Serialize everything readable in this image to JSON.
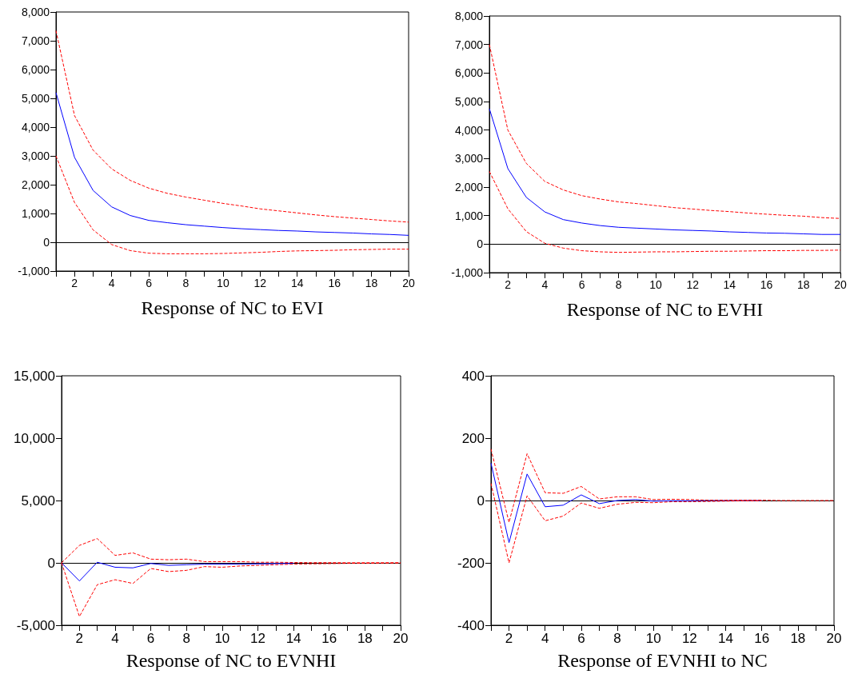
{
  "chart_data": [
    {
      "type": "line",
      "xlabel": "Response of NC to EVI",
      "x": [
        1,
        2,
        3,
        4,
        5,
        6,
        7,
        8,
        9,
        10,
        11,
        12,
        13,
        14,
        15,
        16,
        17,
        18,
        19,
        20
      ],
      "xlim": [
        1,
        20
      ],
      "xticks": [
        {
          "value": 1,
          "label": null
        },
        2,
        {
          "value": 3,
          "label": null
        },
        4,
        {
          "value": 5,
          "label": null
        },
        6,
        {
          "value": 7,
          "label": null
        },
        8,
        {
          "value": 9,
          "label": null
        },
        10,
        {
          "value": 11,
          "label": null
        },
        12,
        {
          "value": 13,
          "label": null
        },
        14,
        {
          "value": 15,
          "label": null
        },
        16,
        {
          "value": 17,
          "label": null
        },
        18,
        {
          "value": 19,
          "label": null
        },
        20
      ],
      "ylim": [
        -1000,
        8000
      ],
      "yticks": [
        {
          "value": -1000,
          "label": "-1,000"
        },
        0,
        {
          "value": 1000,
          "label": "1,000"
        },
        {
          "value": 2000,
          "label": "2,000"
        },
        {
          "value": 3000,
          "label": "3,000"
        },
        {
          "value": 4000,
          "label": "4,000"
        },
        {
          "value": 5000,
          "label": "5,000"
        },
        {
          "value": 6000,
          "label": "6,000"
        },
        {
          "value": 7000,
          "label": "7,000"
        },
        {
          "value": 8000,
          "label": "8,000"
        }
      ],
      "grid": false,
      "marker": "none",
      "ref_lines": [
        {
          "axis": "y",
          "value": 0,
          "color": "#000000"
        }
      ],
      "series": [
        {
          "color": "#0000ff",
          "line_style": "solid",
          "values": [
            5200,
            2950,
            1800,
            1230,
            930,
            760,
            680,
            610,
            560,
            510,
            470,
            440,
            410,
            390,
            360,
            340,
            320,
            290,
            270,
            240
          ]
        },
        {
          "color": "#ff0000",
          "line_style": "dashed",
          "values": [
            7350,
            4400,
            3200,
            2550,
            2150,
            1880,
            1700,
            1570,
            1460,
            1350,
            1260,
            1160,
            1090,
            1020,
            950,
            890,
            840,
            790,
            740,
            700
          ]
        },
        {
          "color": "#ff0000",
          "line_style": "dashed",
          "values": [
            3000,
            1380,
            430,
            -80,
            -290,
            -380,
            -400,
            -400,
            -400,
            -390,
            -370,
            -350,
            -320,
            -300,
            -290,
            -280,
            -260,
            -250,
            -240,
            -240
          ]
        }
      ]
    },
    {
      "type": "line",
      "xlabel": "Response of NC to EVHI",
      "x": [
        1,
        2,
        3,
        4,
        5,
        6,
        7,
        8,
        9,
        10,
        11,
        12,
        13,
        14,
        15,
        16,
        17,
        18,
        19,
        20
      ],
      "xlim": [
        1,
        20
      ],
      "xticks": [
        {
          "value": 1,
          "label": null
        },
        2,
        {
          "value": 3,
          "label": null
        },
        4,
        {
          "value": 5,
          "label": null
        },
        6,
        {
          "value": 7,
          "label": null
        },
        8,
        {
          "value": 9,
          "label": null
        },
        10,
        {
          "value": 11,
          "label": null
        },
        12,
        {
          "value": 13,
          "label": null
        },
        14,
        {
          "value": 15,
          "label": null
        },
        16,
        {
          "value": 17,
          "label": null
        },
        18,
        {
          "value": 19,
          "label": null
        },
        20
      ],
      "ylim": [
        -1000,
        8000
      ],
      "yticks": [
        {
          "value": -1000,
          "label": "-1,000"
        },
        0,
        {
          "value": 1000,
          "label": "1,000"
        },
        {
          "value": 2000,
          "label": "2,000"
        },
        {
          "value": 3000,
          "label": "3,000"
        },
        {
          "value": 4000,
          "label": "4,000"
        },
        {
          "value": 5000,
          "label": "5,000"
        },
        {
          "value": 6000,
          "label": "6,000"
        },
        {
          "value": 7000,
          "label": "7,000"
        },
        {
          "value": 8000,
          "label": "8,000"
        }
      ],
      "grid": false,
      "marker": "none",
      "ref_lines": [
        {
          "axis": "y",
          "value": 0,
          "color": "#000000"
        }
      ],
      "series": [
        {
          "color": "#0000ff",
          "line_style": "solid",
          "values": [
            4750,
            2650,
            1640,
            1130,
            860,
            740,
            650,
            590,
            560,
            530,
            500,
            480,
            460,
            430,
            410,
            390,
            380,
            360,
            340,
            340
          ]
        },
        {
          "color": "#ff0000",
          "line_style": "dashed",
          "values": [
            7000,
            4000,
            2830,
            2200,
            1900,
            1700,
            1580,
            1480,
            1420,
            1350,
            1280,
            1230,
            1180,
            1140,
            1090,
            1050,
            1010,
            980,
            930,
            900
          ]
        },
        {
          "color": "#ff0000",
          "line_style": "dashed",
          "values": [
            2550,
            1240,
            440,
            30,
            -140,
            -230,
            -270,
            -290,
            -280,
            -270,
            -270,
            -260,
            -250,
            -250,
            -240,
            -230,
            -230,
            -220,
            -220,
            -210
          ]
        }
      ]
    },
    {
      "type": "line",
      "xlabel": "Response of NC to EVNHI",
      "x": [
        1,
        2,
        3,
        4,
        5,
        6,
        7,
        8,
        9,
        10,
        11,
        12,
        13,
        14,
        15,
        16,
        17,
        18,
        19,
        20
      ],
      "xlim": [
        1,
        20
      ],
      "xticks": [
        {
          "value": 1,
          "label": null
        },
        2,
        {
          "value": 3,
          "label": null
        },
        4,
        {
          "value": 5,
          "label": null
        },
        6,
        {
          "value": 7,
          "label": null
        },
        8,
        {
          "value": 9,
          "label": null
        },
        10,
        {
          "value": 11,
          "label": null
        },
        12,
        {
          "value": 13,
          "label": null
        },
        14,
        {
          "value": 15,
          "label": null
        },
        16,
        {
          "value": 17,
          "label": null
        },
        18,
        {
          "value": 19,
          "label": null
        },
        20
      ],
      "ylim": [
        -5000,
        15000
      ],
      "yticks": [
        {
          "value": -5000,
          "label": "-5,000"
        },
        0,
        {
          "value": 5000,
          "label": "5,000"
        },
        {
          "value": 10000,
          "label": "10,000"
        },
        {
          "value": 15000,
          "label": "15,000"
        }
      ],
      "grid": false,
      "marker": "none",
      "ref_lines": [
        {
          "axis": "y",
          "value": 0,
          "color": "#000000"
        }
      ],
      "series": [
        {
          "color": "#0000ff",
          "line_style": "solid",
          "values": [
            0,
            -1450,
            50,
            -350,
            -400,
            -50,
            -200,
            -150,
            -100,
            -100,
            -100,
            -80,
            -60,
            -50,
            null,
            null,
            null,
            null,
            null,
            null
          ]
        },
        {
          "color": "#ff0000",
          "line_style": "dashed",
          "values": [
            0,
            1400,
            1950,
            600,
            800,
            300,
            250,
            300,
            100,
            100,
            100,
            50,
            50,
            30,
            20,
            20,
            10,
            10,
            10,
            10
          ]
        },
        {
          "color": "#ff0000",
          "line_style": "dashed",
          "values": [
            0,
            -4300,
            -1750,
            -1350,
            -1650,
            -450,
            -700,
            -600,
            -300,
            -350,
            -250,
            -200,
            -150,
            -100,
            -80,
            -60,
            -40,
            -30,
            -20,
            -10
          ]
        }
      ]
    },
    {
      "type": "line",
      "xlabel": "Response of EVNHI to NC",
      "x": [
        1,
        2,
        3,
        4,
        5,
        6,
        7,
        8,
        9,
        10,
        11,
        12,
        13,
        14,
        15,
        16,
        17,
        18,
        19,
        20
      ],
      "xlim": [
        1,
        20
      ],
      "xticks": [
        {
          "value": 1,
          "label": null
        },
        2,
        {
          "value": 3,
          "label": null
        },
        4,
        {
          "value": 5,
          "label": null
        },
        6,
        {
          "value": 7,
          "label": null
        },
        8,
        {
          "value": 9,
          "label": null
        },
        10,
        {
          "value": 11,
          "label": null
        },
        12,
        {
          "value": 13,
          "label": null
        },
        14,
        {
          "value": 15,
          "label": null
        },
        16,
        {
          "value": 17,
          "label": null
        },
        18,
        {
          "value": 19,
          "label": null
        },
        20
      ],
      "ylim": [
        -400,
        400
      ],
      "yticks": [
        -400,
        -200,
        0,
        200,
        400
      ],
      "grid": false,
      "marker": "none",
      "ref_lines": [
        {
          "axis": "y",
          "value": 0,
          "color": "#000000"
        }
      ],
      "series": [
        {
          "color": "#0000ff",
          "line_style": "solid",
          "values": [
            120,
            -135,
            85,
            -20,
            -15,
            18,
            -10,
            0,
            3,
            -2,
            -1,
            -1,
            0,
            0,
            0,
            0,
            null,
            null,
            null,
            null
          ]
        },
        {
          "color": "#ff0000",
          "line_style": "dashed",
          "values": [
            165,
            -70,
            150,
            25,
            23,
            45,
            5,
            12,
            12,
            3,
            4,
            3,
            1,
            1,
            1,
            1,
            0,
            0,
            0,
            0
          ]
        },
        {
          "color": "#ff0000",
          "line_style": "dashed",
          "values": [
            55,
            -200,
            15,
            -65,
            -50,
            -8,
            -25,
            -12,
            -6,
            -7,
            -4,
            -4,
            -3,
            -2,
            -1,
            -1,
            null,
            null,
            null,
            null
          ]
        }
      ]
    }
  ]
}
